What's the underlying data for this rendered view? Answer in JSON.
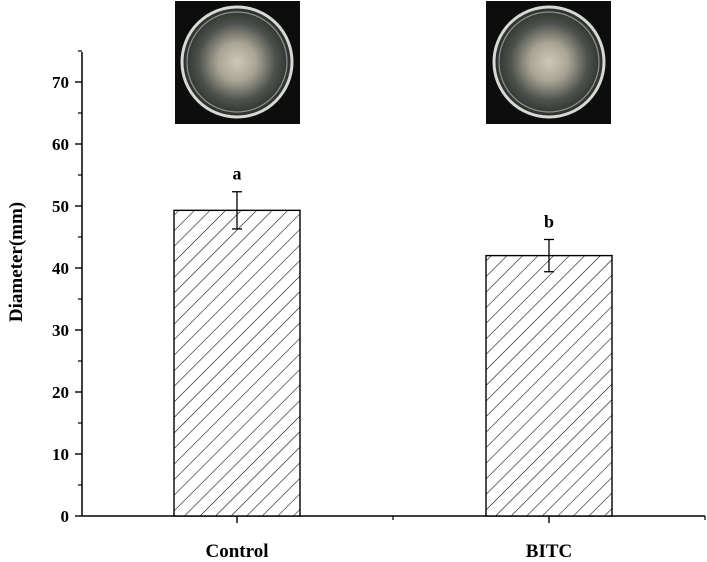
{
  "chart_data": {
    "type": "bar",
    "categories": [
      "Control",
      "BITC"
    ],
    "values": [
      49.3,
      42.0
    ],
    "errors": [
      3.0,
      2.6
    ],
    "significance": [
      "a",
      "b"
    ],
    "ylabel": "Diameter(mm)",
    "xlabel": "",
    "ylim": [
      0,
      75
    ],
    "yticks": [
      0,
      10,
      20,
      30,
      40,
      50,
      60,
      70
    ],
    "ytick_labels": [
      "0",
      "10",
      "20",
      "30",
      "40",
      "50",
      "60",
      "70"
    ],
    "bar_pattern": "diagonal-hatch",
    "grid": false,
    "legend": "none",
    "insets": [
      {
        "category": "Control",
        "content": "petri-dish-photo"
      },
      {
        "category": "BITC",
        "content": "petri-dish-photo"
      }
    ]
  },
  "colors": {
    "axis": "#000000",
    "bar_fill": "#ffffff",
    "hatch": "#000000",
    "photo_background": "#0d0d0d"
  }
}
